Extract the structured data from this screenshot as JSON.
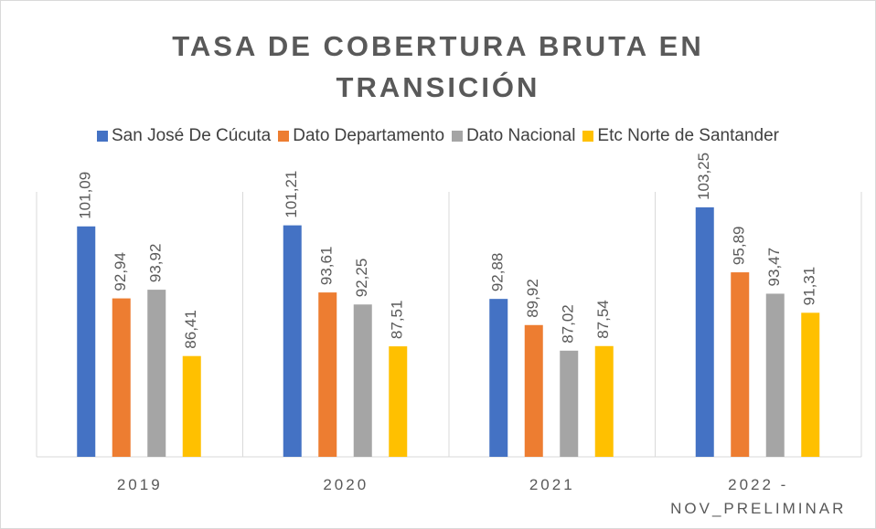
{
  "chart_data": {
    "type": "bar",
    "title": "TASA DE COBERTURA BRUTA EN TRANSICIÓN",
    "categories": [
      "2019",
      "2020",
      "2021",
      "2022 - NOV_PRELIMINAR"
    ],
    "series": [
      {
        "name": "San José De Cúcuta",
        "color": "#4472c4",
        "values": [
          101.09,
          101.21,
          92.88,
          103.25
        ],
        "value_labels": [
          "101,09",
          "101,21",
          "92,88",
          "103,25"
        ]
      },
      {
        "name": "Dato Departamento",
        "color": "#ed7d31",
        "values": [
          92.94,
          93.61,
          89.92,
          95.89
        ],
        "value_labels": [
          "92,94",
          "93,61",
          "89,92",
          "95,89"
        ]
      },
      {
        "name": "Dato Nacional",
        "color": "#a5a5a5",
        "values": [
          93.92,
          92.25,
          87.02,
          93.47
        ],
        "value_labels": [
          "93,92",
          "92,25",
          "87,02",
          "93,47"
        ]
      },
      {
        "name": "Etc Norte de Santander",
        "color": "#ffc000",
        "values": [
          86.41,
          87.51,
          87.54,
          91.31
        ],
        "value_labels": [
          "86,41",
          "87,51",
          "87,54",
          "91,31"
        ]
      }
    ],
    "ylim": [
      75,
      105
    ],
    "legend": "top"
  }
}
